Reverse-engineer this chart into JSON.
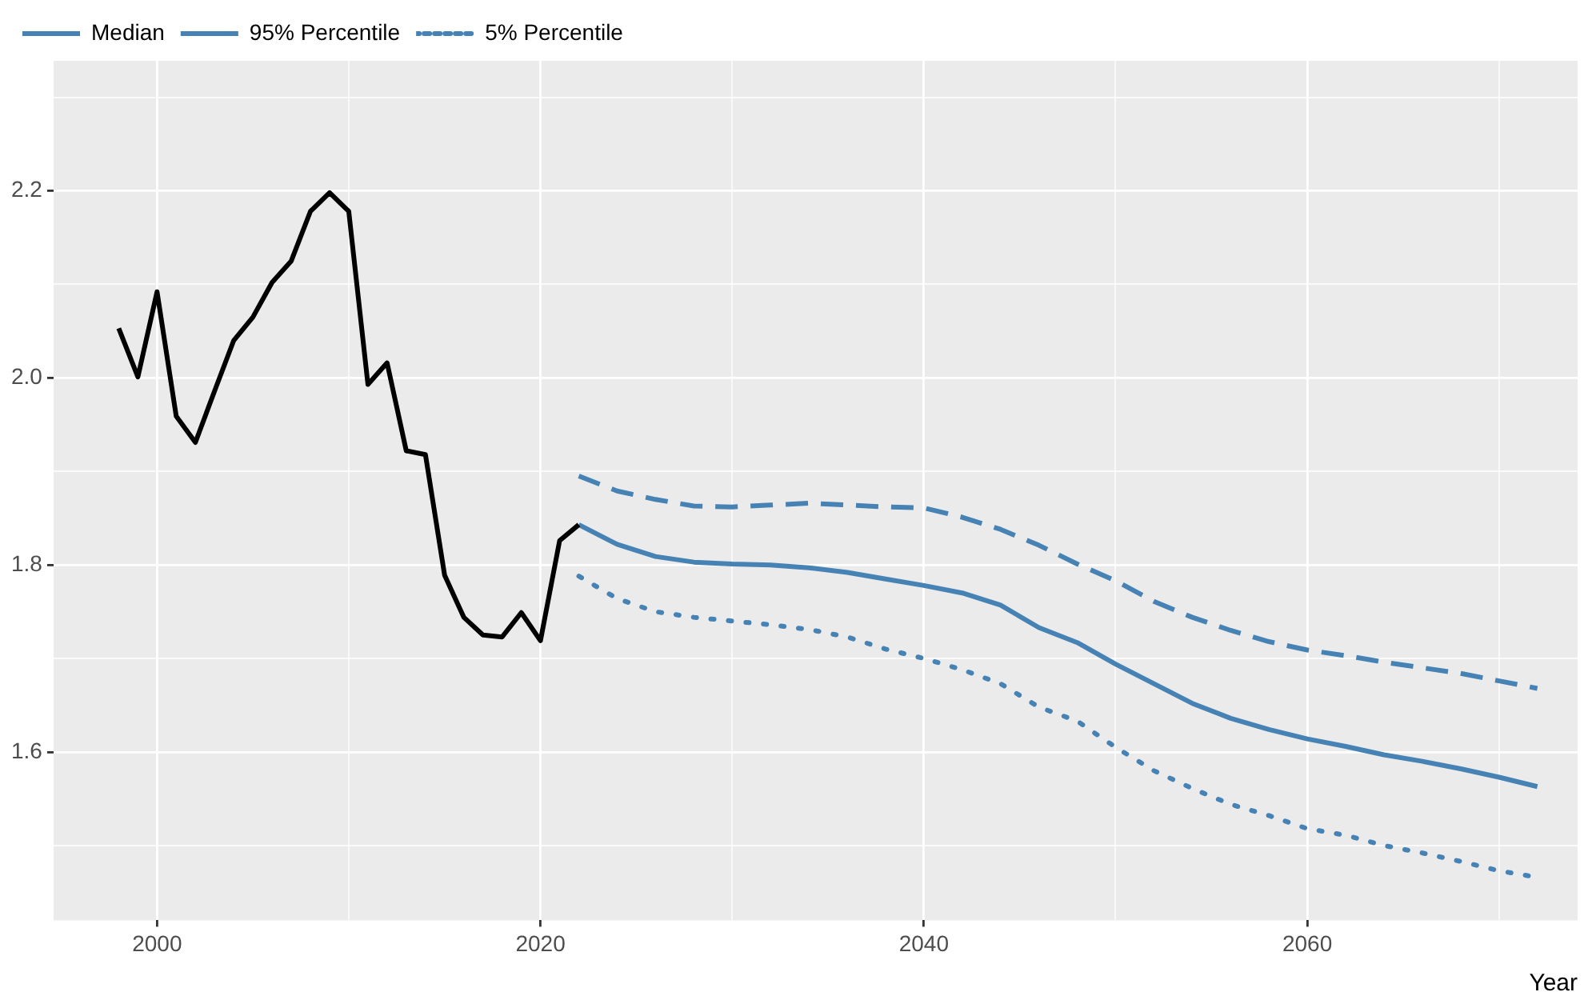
{
  "chart_data": {
    "type": "line",
    "xlabel": "Year",
    "xlim": [
      1994.6,
      2074.1
    ],
    "ylim": [
      1.42,
      2.339
    ],
    "xticks": [
      2000,
      {
        "value": 2010,
        "label": null
      },
      2020,
      {
        "value": 2030,
        "label": null
      },
      2040,
      {
        "value": 2050,
        "label": null
      },
      2060,
      {
        "value": 2070,
        "label": null
      }
    ],
    "yticks": [
      {
        "value": 1.5,
        "label": null
      },
      1.6,
      {
        "value": 1.7,
        "label": null
      },
      1.8,
      {
        "value": 1.9,
        "label": null
      },
      {
        "value": 2,
        "label": "2.0"
      },
      {
        "value": 2.1,
        "label": null
      },
      2.2,
      {
        "value": 2.3,
        "label": null
      }
    ],
    "grid": true,
    "legend": "top left",
    "marker": "none",
    "series": [
      {
        "color": "#000000",
        "line_style": "solid",
        "x": [
          1998,
          1999,
          2000,
          2001,
          2002,
          2003,
          2004,
          2005,
          2006,
          2007,
          2008,
          2009,
          2010,
          2011,
          2012,
          2013,
          2014,
          2015,
          2016,
          2017,
          2018,
          2019,
          2020,
          2021,
          2022
        ],
        "values": [
          2.053,
          2.001,
          2.092,
          1.959,
          1.931,
          1.986,
          2.04,
          2.065,
          2.102,
          2.125,
          2.178,
          2.198,
          2.178,
          1.993,
          2.016,
          1.922,
          1.918,
          1.789,
          1.744,
          1.725,
          1.723,
          1.749,
          1.719,
          1.826,
          1.843
        ]
      },
      {
        "name": "Median",
        "color": "#4682b4",
        "line_style": "solid",
        "x": [
          2022,
          2024,
          2026,
          2028,
          2030,
          2032,
          2034,
          2036,
          2038,
          2040,
          2042,
          2044,
          2046,
          2048,
          2050,
          2052,
          2054,
          2056,
          2058,
          2060,
          2062,
          2064,
          2066,
          2068,
          2070,
          2072
        ],
        "values": [
          1.843,
          1.822,
          1.809,
          1.803,
          1.801,
          1.8,
          1.797,
          1.792,
          1.785,
          1.778,
          1.77,
          1.757,
          1.733,
          1.717,
          1.694,
          1.673,
          1.652,
          1.636,
          1.624,
          1.614,
          1.606,
          1.597,
          1.59,
          1.582,
          1.573,
          1.563
        ]
      },
      {
        "name": "95% Percentile",
        "color": "#4682b4",
        "line_style": "dashed",
        "x": [
          2022,
          2024,
          2026,
          2028,
          2030,
          2032,
          2034,
          2036,
          2038,
          2040,
          2042,
          2044,
          2046,
          2048,
          2050,
          2052,
          2054,
          2056,
          2058,
          2060,
          2062,
          2064,
          2066,
          2068,
          2070,
          2072
        ],
        "values": [
          1.895,
          1.879,
          1.87,
          1.863,
          1.862,
          1.864,
          1.866,
          1.864,
          1.862,
          1.861,
          1.851,
          1.838,
          1.821,
          1.801,
          1.783,
          1.761,
          1.744,
          1.73,
          1.718,
          1.709,
          1.703,
          1.696,
          1.69,
          1.684,
          1.676,
          1.668
        ]
      },
      {
        "name": "5% Percentile",
        "color": "#4682b4",
        "line_style": "dotted",
        "x": [
          2022,
          2024,
          2026,
          2028,
          2030,
          2032,
          2034,
          2036,
          2038,
          2040,
          2042,
          2044,
          2046,
          2048,
          2050,
          2052,
          2054,
          2056,
          2058,
          2060,
          2062,
          2064,
          2066,
          2068,
          2070,
          2072
        ],
        "values": [
          1.788,
          1.764,
          1.75,
          1.744,
          1.74,
          1.736,
          1.731,
          1.723,
          1.71,
          1.7,
          1.688,
          1.673,
          1.648,
          1.633,
          1.605,
          1.58,
          1.561,
          1.544,
          1.532,
          1.518,
          1.511,
          1.5,
          1.492,
          1.483,
          1.473,
          1.466
        ]
      }
    ]
  }
}
